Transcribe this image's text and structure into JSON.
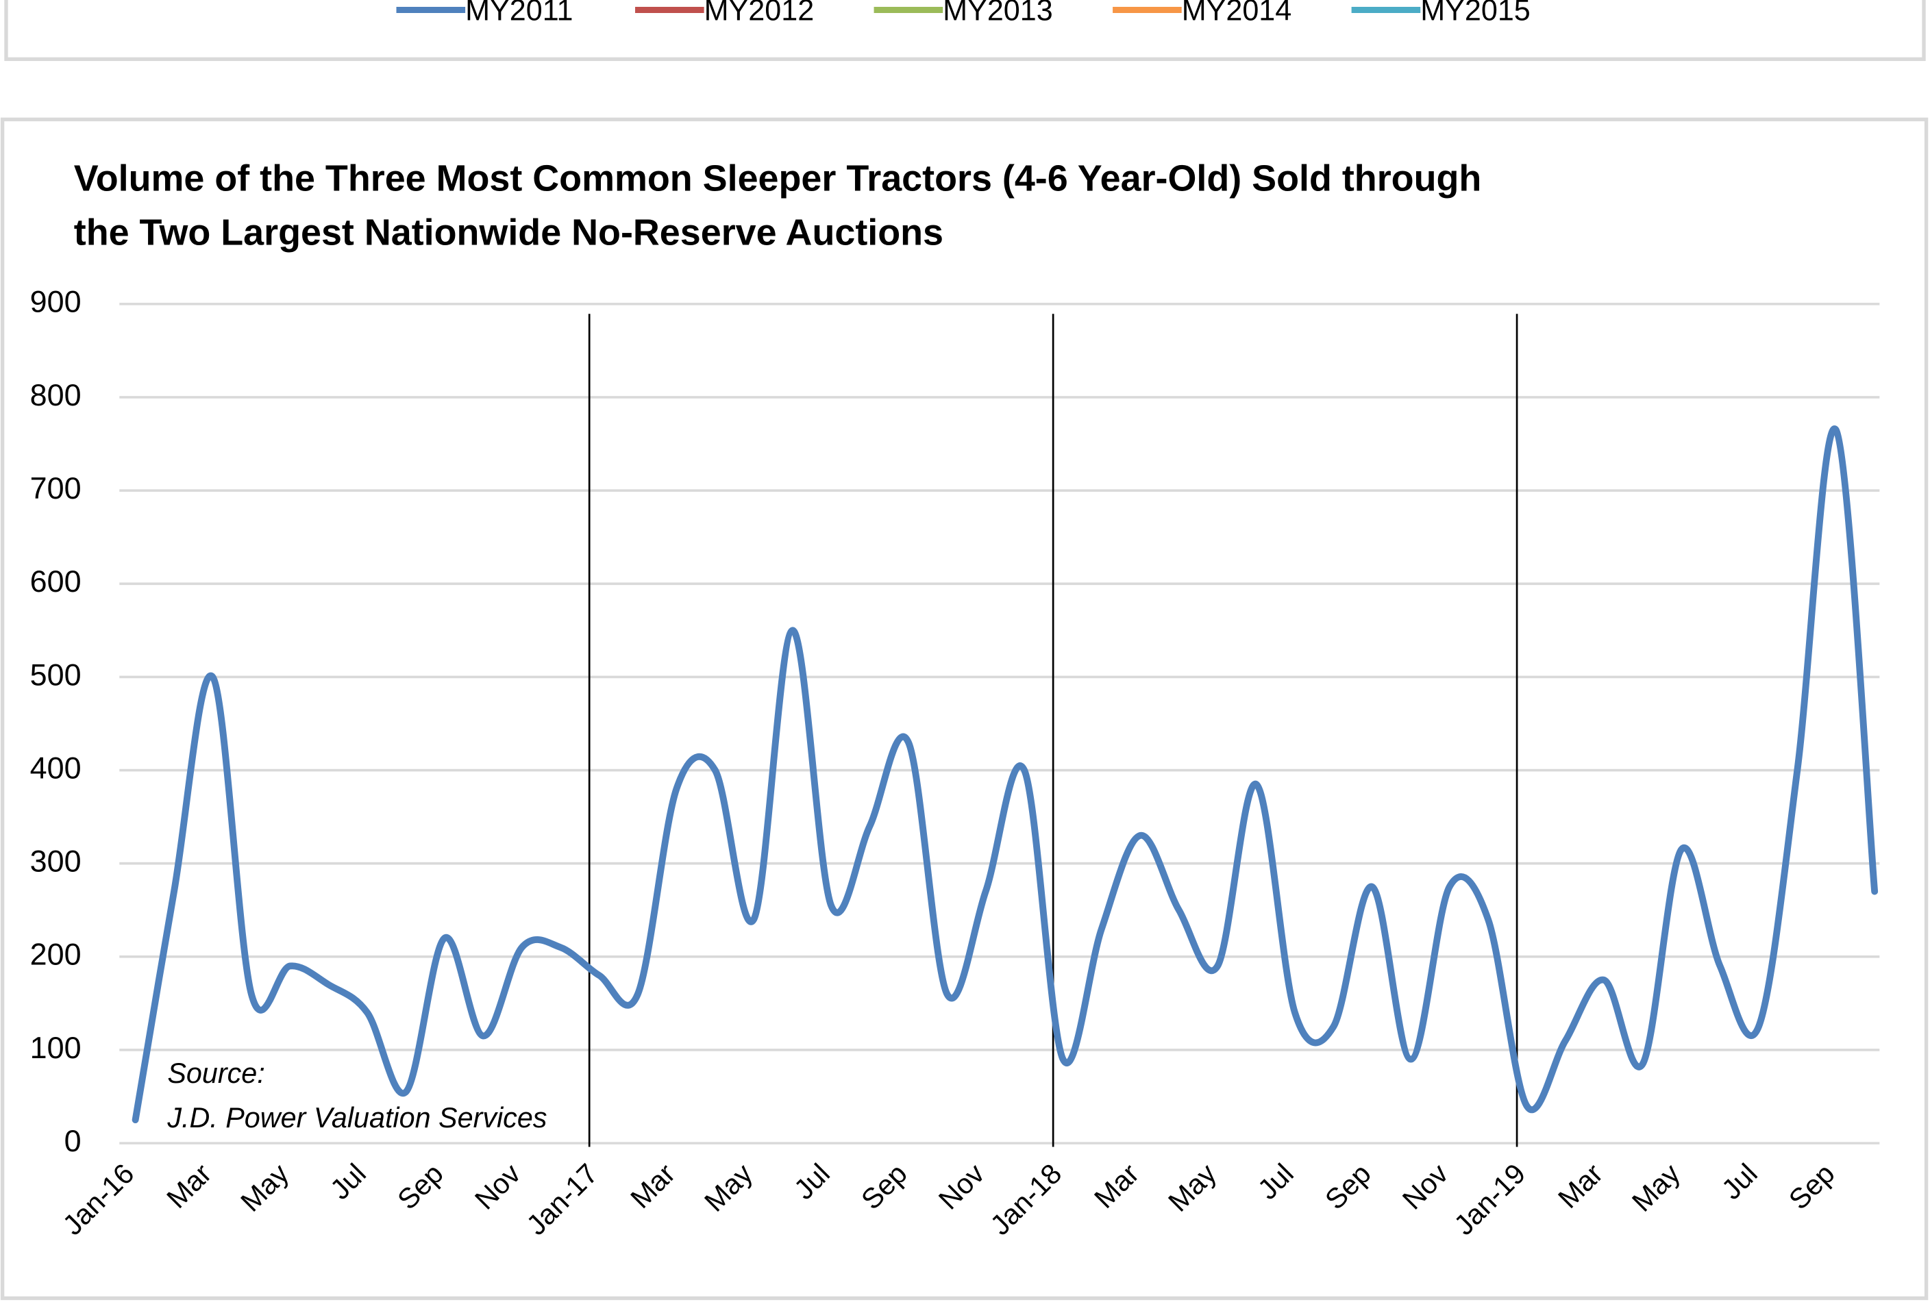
{
  "top_legend": [
    {
      "name": "MY2011",
      "color": "#4f81bd"
    },
    {
      "name": "MY2012",
      "color": "#c0504d"
    },
    {
      "name": "MY2013",
      "color": "#9bbb59"
    },
    {
      "name": "MY2014",
      "color": "#f79646"
    },
    {
      "name": "MY2015",
      "color": "#4bacc6"
    }
  ],
  "chart_data": {
    "type": "line",
    "title": [
      "Volume of the Three Most Common Sleeper Tractors (4-6 Year-Old) Sold through",
      "the Two Largest Nationwide No-Reserve Auctions"
    ],
    "annotation": [
      "Source:",
      "J.D. Power Valuation Services"
    ],
    "categories": [
      "Jan-16",
      null,
      "Mar",
      null,
      "May",
      null,
      "Jul",
      null,
      "Sep",
      null,
      "Nov",
      null,
      "Jan-17",
      null,
      "Mar",
      null,
      "May",
      null,
      "Jul",
      null,
      "Sep",
      null,
      "Nov",
      null,
      "Jan-18",
      null,
      "Mar",
      null,
      "May",
      null,
      "Jul",
      null,
      "Sep",
      null,
      "Nov",
      null,
      "Jan-19",
      null,
      "Mar",
      null,
      "May",
      null,
      "Jul",
      null,
      "Sep",
      null
    ],
    "series": [
      {
        "color": "#4f81bd",
        "values": [
          25,
          270,
          500,
          160,
          190,
          170,
          140,
          55,
          220,
          115,
          210,
          210,
          180,
          160,
          380,
          400,
          240,
          550,
          255,
          340,
          430,
          160,
          270,
          400,
          90,
          230,
          330,
          250,
          190,
          385,
          140,
          125,
          275,
          90,
          275,
          240,
          40,
          110,
          175,
          85,
          315,
          190,
          125,
          400,
          765,
          270
        ]
      }
    ],
    "ylim": [
      0,
      900
    ],
    "yticks": [
      0,
      100,
      200,
      300,
      400,
      500,
      600,
      700,
      800,
      900
    ],
    "grid": true
  }
}
